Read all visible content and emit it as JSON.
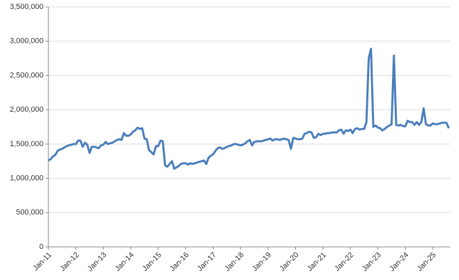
{
  "chart_data": {
    "type": "line",
    "categories": [
      "Jan-11",
      null,
      null,
      null,
      null,
      null,
      null,
      null,
      null,
      null,
      null,
      null,
      "Jan-12",
      null,
      null,
      null,
      null,
      null,
      null,
      null,
      null,
      null,
      null,
      null,
      "Jan-13",
      null,
      null,
      null,
      null,
      null,
      null,
      null,
      null,
      null,
      null,
      null,
      "Jan-14",
      null,
      null,
      null,
      null,
      null,
      null,
      null,
      null,
      null,
      null,
      null,
      "Jan-15",
      null,
      null,
      null,
      null,
      null,
      null,
      null,
      null,
      null,
      null,
      null,
      "Jan-16",
      null,
      null,
      null,
      null,
      null,
      null,
      null,
      null,
      null,
      null,
      null,
      "Jan-17",
      null,
      null,
      null,
      null,
      null,
      null,
      null,
      null,
      null,
      null,
      null,
      "Jan-18",
      null,
      null,
      null,
      null,
      null,
      null,
      null,
      null,
      null,
      null,
      null,
      "Jan-19",
      null,
      null,
      null,
      null,
      null,
      null,
      null,
      null,
      null,
      null,
      null,
      "Jan-20",
      null,
      null,
      null,
      null,
      null,
      null,
      null,
      null,
      null,
      null,
      null,
      "Jan-21",
      null,
      null,
      null,
      null,
      null,
      null,
      null,
      null,
      null,
      null,
      null,
      "Jan-22",
      null,
      null,
      null,
      null,
      null,
      null,
      null,
      null,
      null,
      null,
      null,
      "Jan-23",
      null,
      null,
      null,
      null,
      null,
      null,
      null,
      null,
      null,
      null,
      null,
      "Jan-24",
      null,
      null,
      null,
      null,
      null,
      null,
      null,
      null,
      null,
      null,
      null,
      "Jan-25",
      null,
      null,
      null,
      null,
      null,
      null,
      null
    ],
    "values": [
      1260000,
      1280000,
      1320000,
      1340000,
      1400000,
      1420000,
      1430000,
      1450000,
      1470000,
      1480000,
      1490000,
      1500000,
      1500000,
      1550000,
      1550000,
      1460000,
      1520000,
      1490000,
      1370000,
      1460000,
      1460000,
      1450000,
      1440000,
      1480000,
      1490000,
      1530000,
      1500000,
      1510000,
      1520000,
      1540000,
      1560000,
      1570000,
      1560000,
      1660000,
      1620000,
      1620000,
      1640000,
      1680000,
      1700000,
      1740000,
      1720000,
      1730000,
      1580000,
      1570000,
      1410000,
      1380000,
      1350000,
      1470000,
      1470000,
      1550000,
      1540000,
      1190000,
      1170000,
      1210000,
      1250000,
      1140000,
      1160000,
      1180000,
      1210000,
      1220000,
      1220000,
      1200000,
      1220000,
      1210000,
      1220000,
      1230000,
      1240000,
      1250000,
      1260000,
      1210000,
      1300000,
      1330000,
      1350000,
      1400000,
      1440000,
      1450000,
      1430000,
      1440000,
      1460000,
      1470000,
      1480000,
      1500000,
      1500000,
      1490000,
      1480000,
      1490000,
      1510000,
      1540000,
      1560000,
      1480000,
      1530000,
      1540000,
      1540000,
      1540000,
      1550000,
      1560000,
      1570000,
      1580000,
      1550000,
      1570000,
      1570000,
      1560000,
      1570000,
      1580000,
      1570000,
      1560000,
      1430000,
      1590000,
      1580000,
      1570000,
      1570000,
      1580000,
      1650000,
      1660000,
      1680000,
      1670000,
      1590000,
      1600000,
      1650000,
      1630000,
      1650000,
      1650000,
      1660000,
      1660000,
      1670000,
      1670000,
      1670000,
      1700000,
      1710000,
      1650000,
      1700000,
      1690000,
      1710000,
      1660000,
      1720000,
      1730000,
      1710000,
      1720000,
      1720000,
      1820000,
      2750000,
      2890000,
      1750000,
      1770000,
      1740000,
      1730000,
      1700000,
      1720000,
      1750000,
      1770000,
      1790000,
      2790000,
      1780000,
      1770000,
      1780000,
      1760000,
      1760000,
      1840000,
      1820000,
      1820000,
      1780000,
      1820000,
      1780000,
      1820000,
      2020000,
      1790000,
      1770000,
      1770000,
      1800000,
      1790000,
      1790000,
      1800000,
      1810000,
      1810000,
      1810000,
      1730000
    ],
    "color": "#4a7ebb",
    "ylim": [
      0,
      3500000
    ],
    "yticks": [
      0,
      {
        "value": 500000,
        "label": "500,000"
      },
      {
        "value": 1000000,
        "label": "1,000,000"
      },
      {
        "value": 1500000,
        "label": "1,500,000"
      },
      {
        "value": 2000000,
        "label": "2,000,000"
      },
      {
        "value": 2500000,
        "label": "2,500,000"
      },
      {
        "value": 3000000,
        "label": "3,000,000"
      },
      {
        "value": 3500000,
        "label": "3,500,000"
      }
    ],
    "grid": true
  }
}
